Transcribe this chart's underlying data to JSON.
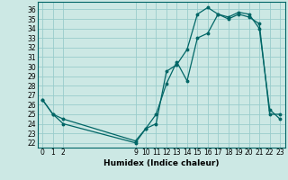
{
  "title": "",
  "xlabel": "Humidex (Indice chaleur)",
  "ylabel": "",
  "background_color": "#cce8e4",
  "grid_color": "#99cccc",
  "line_color": "#006666",
  "xlim": [
    -0.5,
    23.5
  ],
  "ylim": [
    21.5,
    36.8
  ],
  "xticks": [
    0,
    1,
    2,
    9,
    10,
    11,
    12,
    13,
    14,
    15,
    16,
    17,
    18,
    19,
    20,
    21,
    22,
    23
  ],
  "yticks": [
    22,
    23,
    24,
    25,
    26,
    27,
    28,
    29,
    30,
    31,
    32,
    33,
    34,
    35,
    36
  ],
  "line1_x": [
    0,
    1,
    2,
    9,
    10,
    11,
    12,
    13,
    14,
    15,
    16,
    17,
    18,
    19,
    20,
    21,
    22,
    23
  ],
  "line1_y": [
    26.5,
    25.0,
    24.5,
    22.2,
    23.5,
    25.0,
    28.2,
    30.5,
    28.5,
    33.0,
    33.5,
    35.5,
    35.0,
    35.5,
    35.2,
    34.5,
    25.0,
    25.0
  ],
  "line2_x": [
    0,
    1,
    2,
    9,
    10,
    11,
    12,
    13,
    14,
    15,
    16,
    17,
    18,
    19,
    20,
    21,
    22,
    23
  ],
  "line2_y": [
    26.5,
    25.0,
    24.0,
    22.0,
    23.5,
    24.0,
    29.5,
    30.2,
    31.8,
    35.5,
    36.2,
    35.5,
    35.2,
    35.7,
    35.5,
    34.0,
    25.5,
    24.5
  ]
}
